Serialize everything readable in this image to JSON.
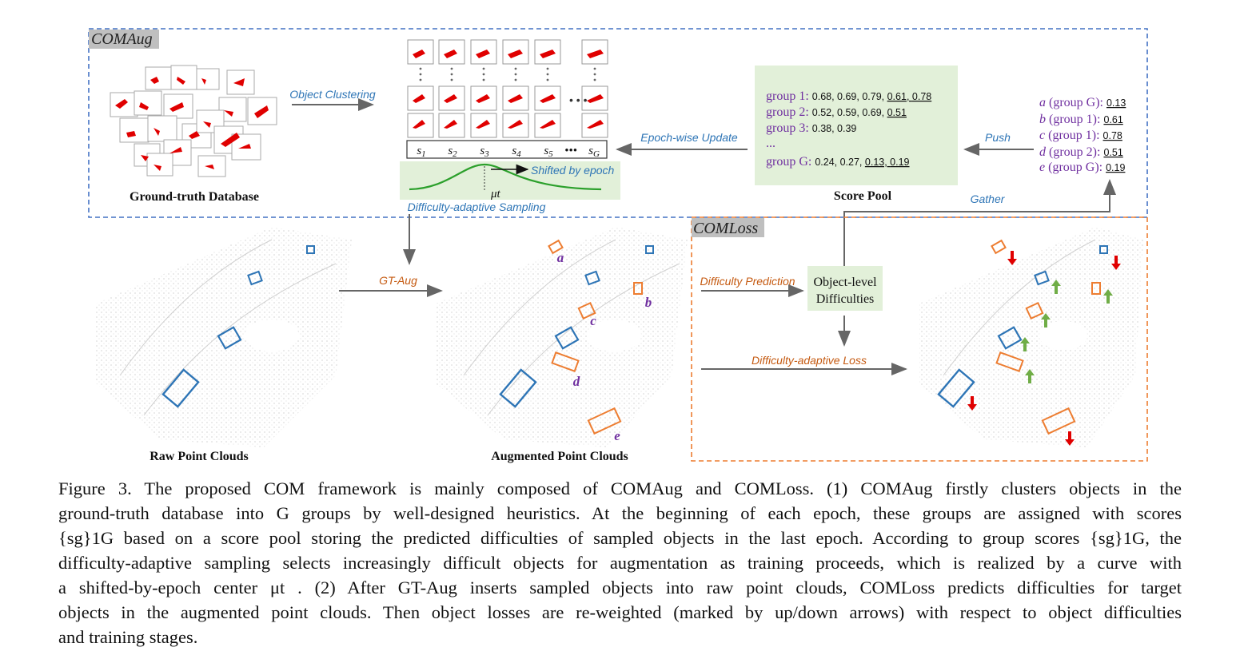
{
  "comaug": {
    "title": "COMAug",
    "gt_database_label": "Ground-truth Database",
    "object_clustering_label": "Object Clustering",
    "score_labels": [
      "s1",
      "s2",
      "s3",
      "s4",
      "s5",
      "•••",
      "sG"
    ],
    "shifted_label": "Shifted by epoch",
    "mu_label": "μt",
    "sampling_label": "Difficulty-adaptive Sampling",
    "epoch_update_label": "Epoch-wise Update",
    "score_pool_label": "Score Pool",
    "score_pool_rows": [
      {
        "group": "group 1:",
        "plain": "0.68, 0.69, 0.79,",
        "underlined": [
          "0.61,",
          "0.78"
        ]
      },
      {
        "group": "group 2:",
        "plain": "0.52, 0.59, 0.69,",
        "underlined": [
          "0.51"
        ]
      },
      {
        "group": "group 3:",
        "plain": "0.38, 0.39",
        "underlined": []
      },
      {
        "group": "...",
        "plain": "",
        "underlined": []
      },
      {
        "group": "group G:",
        "plain": "0.24, 0.27,",
        "underlined": [
          "0.13,",
          "0.19"
        ]
      }
    ],
    "push_label": "Push",
    "gather_label": "Gather",
    "object_list": [
      {
        "obj": "a",
        "group": "(group G):",
        "value": "0.13"
      },
      {
        "obj": "b",
        "group": "(group 1):",
        "value": "0.61"
      },
      {
        "obj": "c",
        "group": "(group 1):",
        "value": "0.78"
      },
      {
        "obj": "d",
        "group": "(group 2):",
        "value": "0.51"
      },
      {
        "obj": "e",
        "group": "(group G):",
        "value": "0.19"
      }
    ]
  },
  "middle": {
    "gt_aug_label": "GT-Aug",
    "raw_label": "Raw Point Clouds",
    "augmented_label": "Augmented Point Clouds",
    "letters": [
      "a",
      "b",
      "c",
      "d",
      "e"
    ]
  },
  "comloss": {
    "title": "COMLoss",
    "difficulty_prediction_label": "Difficulty Prediction",
    "object_level_label_1": "Object-level",
    "object_level_label_2": "Difficulties",
    "adaptive_loss_label": "Difficulty-adaptive Loss"
  },
  "colors": {
    "dashed_blue": "#4472c4",
    "dashed_orange": "#ed7d31",
    "label_blue": "#2e75b6",
    "label_orange": "#c55a11",
    "purple": "#7030a0",
    "green_bg": "#e2f0d9",
    "red": "#e00000",
    "green_arrow": "#70ad47"
  },
  "caption": {
    "lines": [
      "Figure 3.  The proposed COM framework is mainly composed of COMAug and COMLoss.  (1) COMAug firstly clusters objects in the",
      "ground-truth database into G groups by well-designed heuristics.  At the beginning of each epoch, these groups are assigned with scores",
      "{sg}1G based on a score pool storing the predicted difficulties of sampled objects in the last epoch. According to group scores {sg}1G, the",
      "difficulty-adaptive sampling selects increasingly difficult objects for augmentation as training proceeds, which is realized by a curve with",
      "a shifted-by-epoch center μt .  (2) After GT-Aug inserts sampled objects into raw point clouds, COMLoss predicts difficulties for target",
      "objects in the augmented point clouds. Then object losses are re-weighted (marked by up/down arrows) with respect to object difficulties",
      "and training stages."
    ]
  }
}
